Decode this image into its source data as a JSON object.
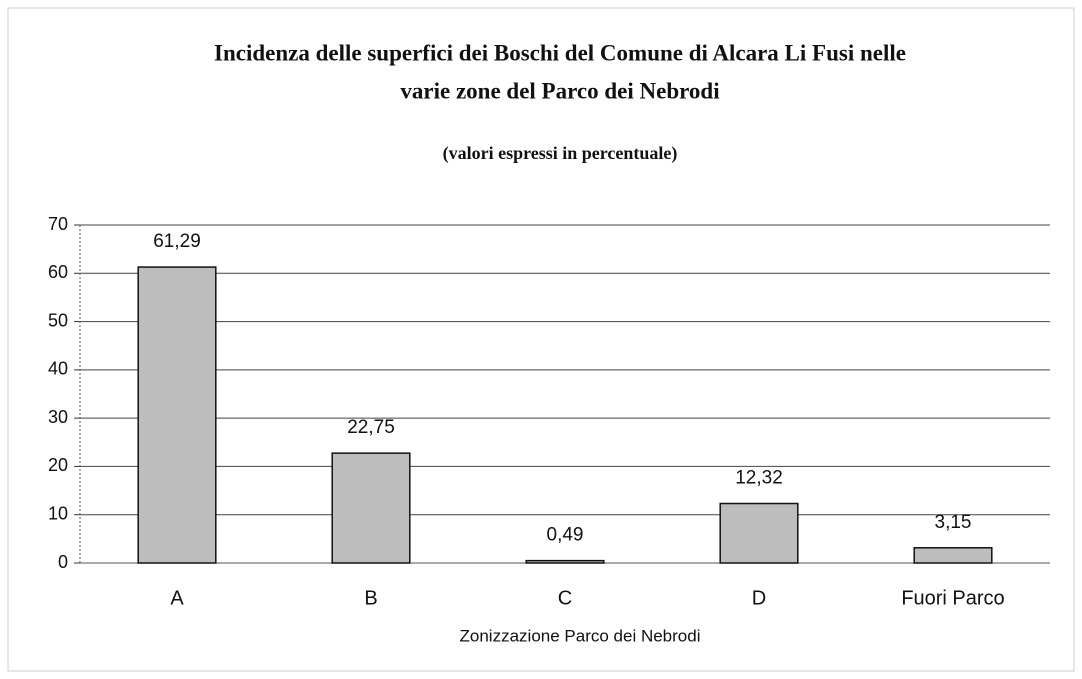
{
  "chart_data": {
    "type": "bar",
    "title_lines": [
      "Incidenza delle superfici dei Boschi del Comune di Alcara Li Fusi nelle",
      "varie zone del Parco dei Nebrodi"
    ],
    "subtitle": "(valori espressi in percentuale)",
    "x_label": "Zonizzazione Parco dei Nebrodi",
    "categories": [
      "A",
      "B",
      "C",
      "D",
      "Fuori Parco"
    ],
    "values": [
      61.29,
      22.75,
      0.49,
      12.32,
      3.15
    ],
    "value_labels": [
      "61,29",
      "22,75",
      "0,49",
      "12,32",
      "3,15"
    ],
    "color": "#bdbdbd",
    "ylim": [
      0,
      70
    ],
    "yticks": [
      0,
      10,
      20,
      30,
      40,
      50,
      60,
      70
    ],
    "grid": true
  }
}
